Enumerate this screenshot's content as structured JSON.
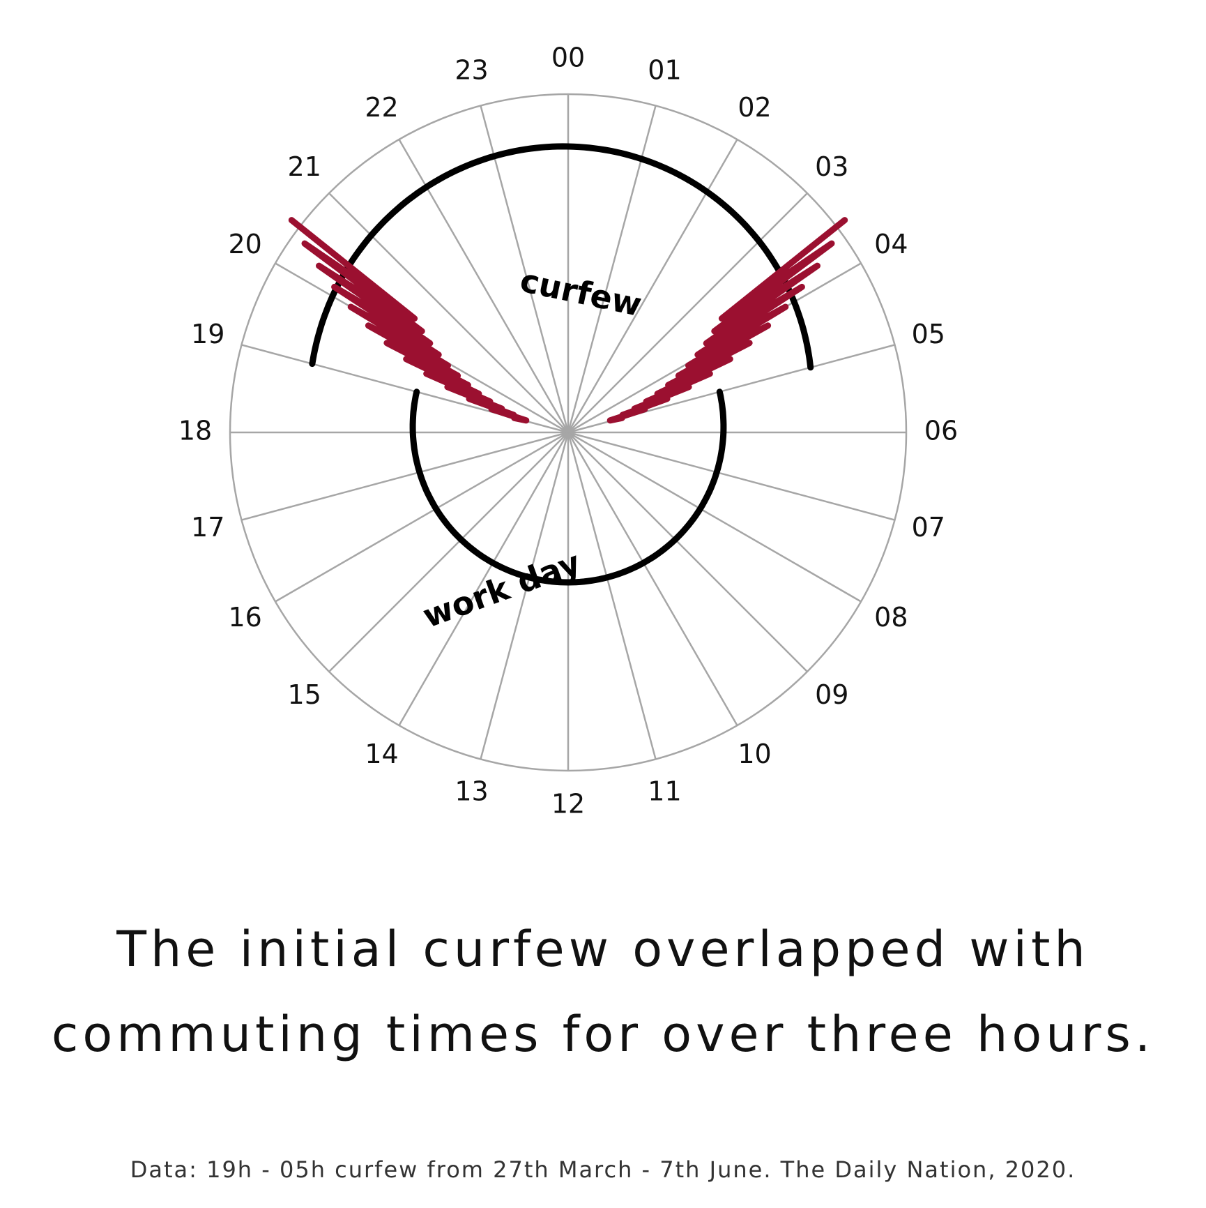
{
  "chart_data": {
    "type": "radial",
    "hour_labels": [
      "00",
      "01",
      "02",
      "03",
      "04",
      "05",
      "06",
      "07",
      "08",
      "09",
      "10",
      "11",
      "12",
      "13",
      "14",
      "15",
      "16",
      "17",
      "18",
      "19",
      "20",
      "21",
      "22",
      "23"
    ],
    "segments": [
      {
        "name": "curfew",
        "start_hour": 19,
        "end_hour": 5
      },
      {
        "name": "work day",
        "start_hour": 5,
        "end_hour": 19
      }
    ],
    "commuting_overlap": [
      {
        "start_hour": 19,
        "end_hour": 20.5
      },
      {
        "start_hour": 3.5,
        "end_hour": 5
      }
    ],
    "colors": {
      "grid": "#a6a6a6",
      "curve": "#000000",
      "commute": "#9b1030"
    }
  },
  "headline": {
    "line1": "The initial curfew overlapped with",
    "line2": "commuting times for over three hours."
  },
  "source": "Data: 19h - 05h curfew from 27th March - 7th June. The Daily Nation, 2020."
}
